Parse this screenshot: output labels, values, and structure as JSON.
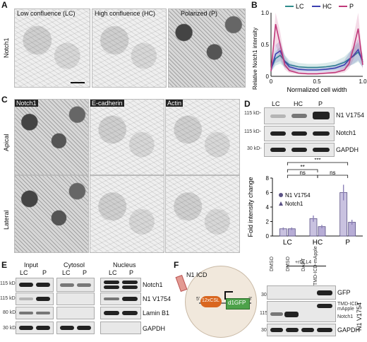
{
  "panels": {
    "A": {
      "letter": "A",
      "columns": [
        "Low confluence (LC)",
        "High confluence (HC)",
        "Polarized (P)"
      ],
      "row_label": "Notch1"
    },
    "B": {
      "letter": "B"
    },
    "C": {
      "letter": "C",
      "columns": [
        "Notch1",
        "E-cadherin",
        "Actin"
      ],
      "rows": [
        "Apical",
        "Lateral"
      ]
    },
    "D": {
      "letter": "D",
      "lanes": [
        "LC",
        "HC",
        "P"
      ],
      "blots": [
        "N1 V1754",
        "Notch1",
        "GAPDH"
      ],
      "mw": [
        "115 kD-",
        "115 kD-",
        "30 kD-"
      ],
      "sig": [
        "***",
        "**",
        "ns",
        "ns"
      ]
    },
    "E": {
      "letter": "E",
      "groups": [
        "Input",
        "Cytosol",
        "Nucleus"
      ],
      "lanes": [
        "LC",
        "P",
        "LC",
        "P",
        "LC",
        "P"
      ],
      "blots": [
        "Notch1",
        "N1 V1754",
        "Lamin B1",
        "GAPDH"
      ],
      "mw": [
        "115 kD-",
        "115 kD-",
        "80 kD-",
        "30 kD-"
      ]
    },
    "F": {
      "letter": "F",
      "n1icd": "N1 ICD",
      "tf": "12xCSL",
      "reporter": "d1GFP",
      "five": "5'",
      "three": "3'",
      "treatment": "+rDLL4",
      "lanes": [
        "DMSO",
        "DMSO",
        "DAPT",
        "TMD-ICD-mApple"
      ],
      "blots": [
        "GFP",
        "N1 V1754",
        "GAPDH"
      ],
      "band_labels": [
        "TMD-ICD-mApple",
        "Notch1"
      ],
      "mw": [
        "30 kD-",
        "115 kD-",
        "30 kD-"
      ]
    }
  },
  "chart_data": [
    {
      "type": "line",
      "panel": "B",
      "xlabel": "Normalized cell width",
      "ylabel": "Relative Notch1 intensity",
      "xlim": [
        0,
        1
      ],
      "ylim": [
        0,
        1
      ],
      "xticks": [
        "0",
        "0.5",
        "1.0"
      ],
      "yticks": [
        "0",
        "0.5",
        "1.0"
      ],
      "legend": "top",
      "x": [
        0,
        0.05,
        0.1,
        0.15,
        0.2,
        0.3,
        0.4,
        0.5,
        0.6,
        0.7,
        0.8,
        0.85,
        0.9,
        0.95,
        1.0
      ],
      "series": [
        {
          "name": "LC",
          "color": "#2f8c8c",
          "values": [
            0.12,
            0.28,
            0.33,
            0.24,
            0.18,
            0.15,
            0.14,
            0.14,
            0.15,
            0.17,
            0.22,
            0.27,
            0.32,
            0.38,
            0.25
          ]
        },
        {
          "name": "HC",
          "color": "#3b3fb0",
          "values": [
            0.1,
            0.35,
            0.4,
            0.23,
            0.15,
            0.11,
            0.1,
            0.1,
            0.11,
            0.13,
            0.18,
            0.26,
            0.33,
            0.42,
            0.22
          ]
        },
        {
          "name": "P",
          "color": "#c0397a",
          "values": [
            0.08,
            0.82,
            0.5,
            0.18,
            0.09,
            0.05,
            0.04,
            0.04,
            0.05,
            0.06,
            0.1,
            0.2,
            0.45,
            0.75,
            0.18
          ]
        }
      ]
    },
    {
      "type": "bar",
      "panel": "D",
      "ylabel": "Fold intensity change",
      "ylim": [
        0,
        8
      ],
      "yticks": [
        "0",
        "2",
        "4",
        "6",
        "8"
      ],
      "categories": [
        "LC",
        "HC",
        "P"
      ],
      "series": [
        {
          "name": "N1 V1754",
          "color": "#8b80b8",
          "values": [
            1.0,
            2.4,
            6.0
          ]
        },
        {
          "name": "Notch1",
          "color": "#8b80b8",
          "values": [
            1.0,
            1.3,
            1.9
          ]
        }
      ]
    }
  ]
}
